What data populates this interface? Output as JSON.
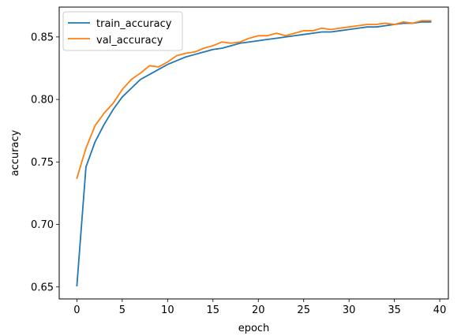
{
  "chart_data": {
    "type": "line",
    "title": "",
    "xlabel": "epoch",
    "ylabel": "accuracy",
    "xlim": [
      -1.95,
      40.95
    ],
    "ylim": [
      0.6404,
      0.8739
    ],
    "x_ticks": [
      0,
      5,
      10,
      15,
      20,
      25,
      30,
      35,
      40
    ],
    "x_tick_labels": [
      "0",
      "5",
      "10",
      "15",
      "20",
      "25",
      "30",
      "35",
      "40"
    ],
    "y_ticks": [
      0.65,
      0.7,
      0.75,
      0.8,
      0.85
    ],
    "y_tick_labels": [
      "0.65",
      "0.70",
      "0.75",
      "0.80",
      "0.85"
    ],
    "grid": false,
    "legend_position": "upper-left",
    "x": [
      0,
      1,
      2,
      3,
      4,
      5,
      6,
      7,
      8,
      9,
      10,
      11,
      12,
      13,
      14,
      15,
      16,
      17,
      18,
      19,
      20,
      21,
      22,
      23,
      24,
      25,
      26,
      27,
      28,
      29,
      30,
      31,
      32,
      33,
      34,
      35,
      36,
      37,
      38,
      39
    ],
    "series": [
      {
        "name": "train_accuracy",
        "color": "#1f77b4",
        "values": [
          0.651,
          0.746,
          0.766,
          0.78,
          0.792,
          0.802,
          0.809,
          0.816,
          0.82,
          0.824,
          0.828,
          0.831,
          0.834,
          0.836,
          0.838,
          0.84,
          0.841,
          0.843,
          0.845,
          0.846,
          0.847,
          0.848,
          0.849,
          0.85,
          0.851,
          0.852,
          0.853,
          0.854,
          0.854,
          0.855,
          0.856,
          0.857,
          0.858,
          0.858,
          0.859,
          0.86,
          0.861,
          0.861,
          0.862,
          0.862
        ]
      },
      {
        "name": "val_accuracy",
        "color": "#ff7f0e",
        "values": [
          0.737,
          0.761,
          0.779,
          0.789,
          0.797,
          0.808,
          0.816,
          0.821,
          0.827,
          0.826,
          0.83,
          0.835,
          0.837,
          0.838,
          0.841,
          0.843,
          0.846,
          0.845,
          0.846,
          0.849,
          0.851,
          0.851,
          0.853,
          0.851,
          0.853,
          0.855,
          0.855,
          0.857,
          0.856,
          0.857,
          0.858,
          0.859,
          0.86,
          0.86,
          0.861,
          0.86,
          0.862,
          0.861,
          0.863,
          0.863
        ]
      }
    ]
  }
}
